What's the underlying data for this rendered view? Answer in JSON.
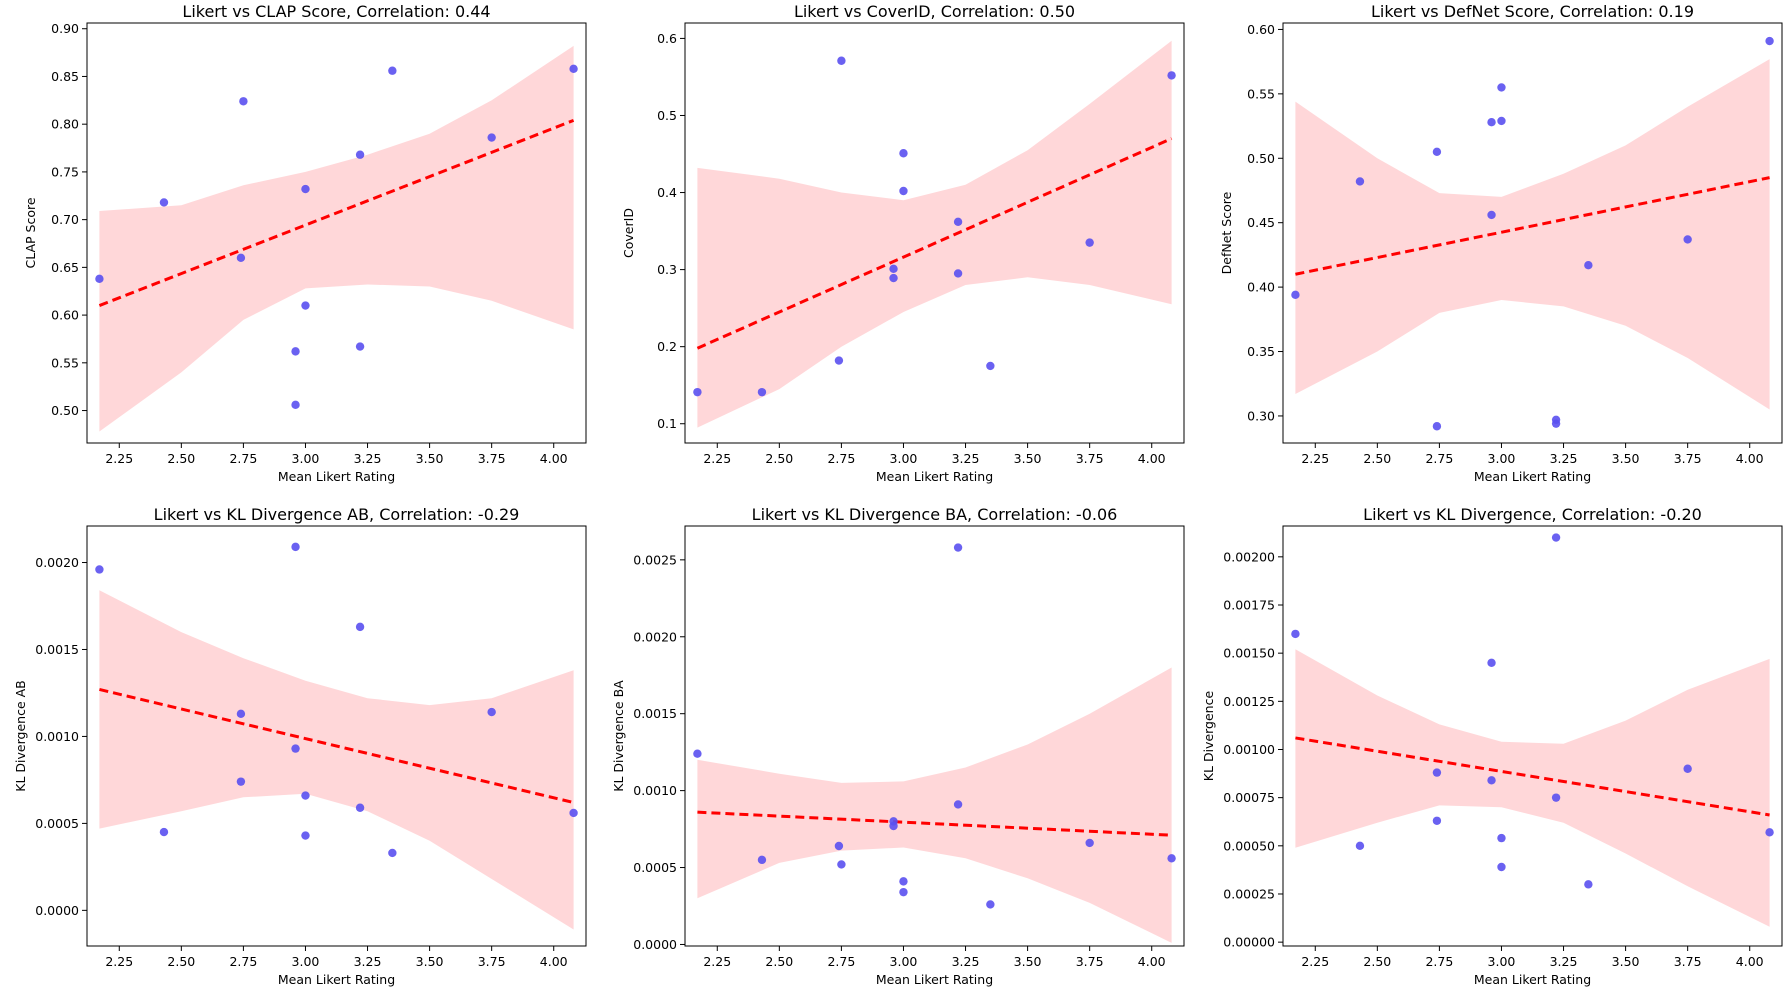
{
  "chart_data": [
    {
      "type": "scatter",
      "title": "Likert vs CLAP Score, Correlation: 0.44",
      "xlabel": "Mean Likert Rating",
      "ylabel": "CLAP Score",
      "xlim": [
        2.12,
        4.13
      ],
      "ylim": [
        0.466,
        0.906
      ],
      "xticks": [
        "2.25",
        "2.50",
        "2.75",
        "3.00",
        "3.25",
        "3.50",
        "3.75",
        "4.00"
      ],
      "yticks": [
        "0.50",
        "0.55",
        "0.60",
        "0.65",
        "0.70",
        "0.75",
        "0.80",
        "0.85",
        "0.90"
      ],
      "x": [
        2.17,
        2.43,
        2.74,
        2.75,
        2.96,
        3.0,
        3.0,
        3.22,
        3.22,
        3.35,
        3.75,
        4.08
      ],
      "y": [
        0.638,
        0.718,
        0.66,
        0.824,
        0.562,
        0.732,
        0.61,
        0.768,
        0.567,
        0.856,
        0.786,
        0.858
      ],
      "y_extra": [
        0.506
      ],
      "x_extra": [
        2.96
      ],
      "fit": {
        "x": [
          2.17,
          4.08
        ],
        "y": [
          0.61,
          0.804
        ]
      },
      "band": {
        "x": [
          2.17,
          2.5,
          2.75,
          3.0,
          3.25,
          3.5,
          3.75,
          4.08
        ],
        "upper": [
          0.709,
          0.715,
          0.736,
          0.75,
          0.768,
          0.79,
          0.825,
          0.882
        ],
        "lower": [
          0.478,
          0.54,
          0.595,
          0.628,
          0.632,
          0.63,
          0.615,
          0.585
        ]
      }
    },
    {
      "type": "scatter",
      "title": "Likert vs CoverID, Correlation: 0.50",
      "xlabel": "Mean Likert Rating",
      "ylabel": "CoverID",
      "xlim": [
        2.12,
        4.13
      ],
      "ylim": [
        0.075,
        0.62
      ],
      "xticks": [
        "2.25",
        "2.50",
        "2.75",
        "3.00",
        "3.25",
        "3.50",
        "3.75",
        "4.00"
      ],
      "yticks": [
        "0.1",
        "0.2",
        "0.3",
        "0.4",
        "0.5",
        "0.6"
      ],
      "x": [
        2.17,
        2.43,
        2.74,
        2.75,
        2.96,
        2.96,
        3.0,
        3.0,
        3.22,
        3.22,
        3.35,
        3.75,
        4.08
      ],
      "y": [
        0.141,
        0.141,
        0.182,
        0.571,
        0.301,
        0.289,
        0.451,
        0.402,
        0.362,
        0.295,
        0.175,
        0.335,
        0.552
      ],
      "fit": {
        "x": [
          2.17,
          4.08
        ],
        "y": [
          0.198,
          0.47
        ]
      },
      "band": {
        "x": [
          2.17,
          2.5,
          2.75,
          3.0,
          3.25,
          3.5,
          3.75,
          4.08
        ],
        "upper": [
          0.432,
          0.418,
          0.4,
          0.39,
          0.41,
          0.455,
          0.515,
          0.597
        ],
        "lower": [
          0.095,
          0.145,
          0.2,
          0.245,
          0.28,
          0.29,
          0.28,
          0.255
        ]
      }
    },
    {
      "type": "scatter",
      "title": "Likert vs DefNet Score, Correlation: 0.19",
      "xlabel": "Mean Likert Rating",
      "ylabel": "DefNet Score",
      "xlim": [
        2.12,
        4.13
      ],
      "ylim": [
        0.279,
        0.605
      ],
      "xticks": [
        "2.25",
        "2.50",
        "2.75",
        "3.00",
        "3.25",
        "3.50",
        "3.75",
        "4.00"
      ],
      "yticks": [
        "0.30",
        "0.35",
        "0.40",
        "0.45",
        "0.50",
        "0.55",
        "0.60"
      ],
      "x": [
        2.17,
        2.43,
        2.74,
        2.74,
        2.96,
        2.96,
        3.0,
        3.0,
        3.22,
        3.22,
        3.35,
        3.75,
        4.08
      ],
      "y": [
        0.394,
        0.482,
        0.505,
        0.292,
        0.528,
        0.456,
        0.555,
        0.529,
        0.297,
        0.294,
        0.417,
        0.437,
        0.591
      ],
      "fit": {
        "x": [
          2.17,
          4.08
        ],
        "y": [
          0.41,
          0.485
        ]
      },
      "band": {
        "x": [
          2.17,
          2.5,
          2.75,
          3.0,
          3.25,
          3.5,
          3.75,
          4.08
        ],
        "upper": [
          0.544,
          0.5,
          0.473,
          0.47,
          0.488,
          0.51,
          0.54,
          0.577
        ],
        "lower": [
          0.317,
          0.35,
          0.38,
          0.39,
          0.385,
          0.37,
          0.345,
          0.305
        ]
      }
    },
    {
      "type": "scatter",
      "title": "Likert vs KL Divergence AB, Correlation: -0.29",
      "xlabel": "Mean Likert Rating",
      "ylabel": "KL Divergence AB",
      "xlim": [
        2.12,
        4.13
      ],
      "ylim": [
        -0.000205,
        0.00221
      ],
      "xticks": [
        "2.25",
        "2.50",
        "2.75",
        "3.00",
        "3.25",
        "3.50",
        "3.75",
        "4.00"
      ],
      "yticks": [
        "0.0000",
        "0.0005",
        "0.0010",
        "0.0015",
        "0.0020"
      ],
      "x": [
        2.17,
        2.43,
        2.74,
        2.74,
        2.96,
        2.96,
        3.0,
        3.0,
        3.22,
        3.22,
        3.35,
        3.75,
        4.08
      ],
      "y": [
        0.00196,
        0.00045,
        0.00113,
        0.00074,
        0.00209,
        0.00093,
        0.00066,
        0.00043,
        0.00163,
        0.00059,
        0.00033,
        0.00114,
        0.00056
      ],
      "fit": {
        "x": [
          2.17,
          4.08
        ],
        "y": [
          0.00127,
          0.00062
        ]
      },
      "band": {
        "x": [
          2.17,
          2.5,
          2.75,
          3.0,
          3.25,
          3.5,
          3.75,
          4.08
        ],
        "upper": [
          0.00184,
          0.0016,
          0.00145,
          0.00132,
          0.00122,
          0.00118,
          0.00122,
          0.00138
        ],
        "lower": [
          0.00047,
          0.00057,
          0.00065,
          0.00067,
          0.00057,
          0.0004,
          0.00018,
          -0.00011
        ]
      }
    },
    {
      "type": "scatter",
      "title": "Likert vs KL Divergence BA, Correlation: -0.06",
      "xlabel": "Mean Likert Rating",
      "ylabel": "KL Divergence BA",
      "xlim": [
        2.12,
        4.13
      ],
      "ylim": [
        -1e-05,
        0.00272
      ],
      "xticks": [
        "2.25",
        "2.50",
        "2.75",
        "3.00",
        "3.25",
        "3.50",
        "3.75",
        "4.00"
      ],
      "yticks": [
        "0.0000",
        "0.0005",
        "0.0010",
        "0.0015",
        "0.0020",
        "0.0025"
      ],
      "x": [
        2.17,
        2.43,
        2.74,
        2.75,
        2.96,
        2.96,
        3.0,
        3.0,
        3.22,
        3.22,
        3.35,
        3.75,
        4.08
      ],
      "y": [
        0.00124,
        0.00055,
        0.00064,
        0.00052,
        0.0008,
        0.00077,
        0.00041,
        0.00034,
        0.00258,
        0.00091,
        0.00026,
        0.00066,
        0.00056
      ],
      "fit": {
        "x": [
          2.17,
          4.08
        ],
        "y": [
          0.00086,
          0.00071
        ]
      },
      "band": {
        "x": [
          2.17,
          2.5,
          2.75,
          3.0,
          3.25,
          3.5,
          3.75,
          4.08
        ],
        "upper": [
          0.0012,
          0.00111,
          0.00105,
          0.00106,
          0.00115,
          0.0013,
          0.0015,
          0.0018
        ],
        "lower": [
          0.0003,
          0.00053,
          0.00061,
          0.00063,
          0.00056,
          0.00043,
          0.00027,
          1e-05
        ]
      }
    },
    {
      "type": "scatter",
      "title": "Likert vs KL Divergence, Correlation: -0.20",
      "xlabel": "Mean Likert Rating",
      "ylabel": "KL Divergence",
      "xlim": [
        2.12,
        4.13
      ],
      "ylim": [
        -2e-05,
        0.00216
      ],
      "xticks": [
        "2.25",
        "2.50",
        "2.75",
        "3.00",
        "3.25",
        "3.50",
        "3.75",
        "4.00"
      ],
      "yticks": [
        "0.00000",
        "0.00025",
        "0.00050",
        "0.00075",
        "0.00100",
        "0.00125",
        "0.00150",
        "0.00175",
        "0.00200"
      ],
      "x": [
        2.17,
        2.43,
        2.74,
        2.74,
        2.96,
        2.96,
        3.0,
        3.0,
        3.22,
        3.22,
        3.35,
        3.75,
        4.08
      ],
      "y": [
        0.0016,
        0.0005,
        0.00088,
        0.00063,
        0.00145,
        0.00084,
        0.00054,
        0.00039,
        0.0021,
        0.00075,
        0.0003,
        0.0009,
        0.00057
      ],
      "fit": {
        "x": [
          2.17,
          4.08
        ],
        "y": [
          0.00106,
          0.00066
        ]
      },
      "band": {
        "x": [
          2.17,
          2.5,
          2.75,
          3.0,
          3.25,
          3.5,
          3.75,
          4.08
        ],
        "upper": [
          0.00152,
          0.00128,
          0.00113,
          0.00104,
          0.00103,
          0.00115,
          0.00131,
          0.00147
        ],
        "lower": [
          0.00049,
          0.00062,
          0.00071,
          0.0007,
          0.00062,
          0.00046,
          0.00029,
          8e-05
        ]
      }
    }
  ],
  "colors": {
    "point": "#5a50f0",
    "fit": "#ff0000",
    "band": "#ffb6b9"
  }
}
